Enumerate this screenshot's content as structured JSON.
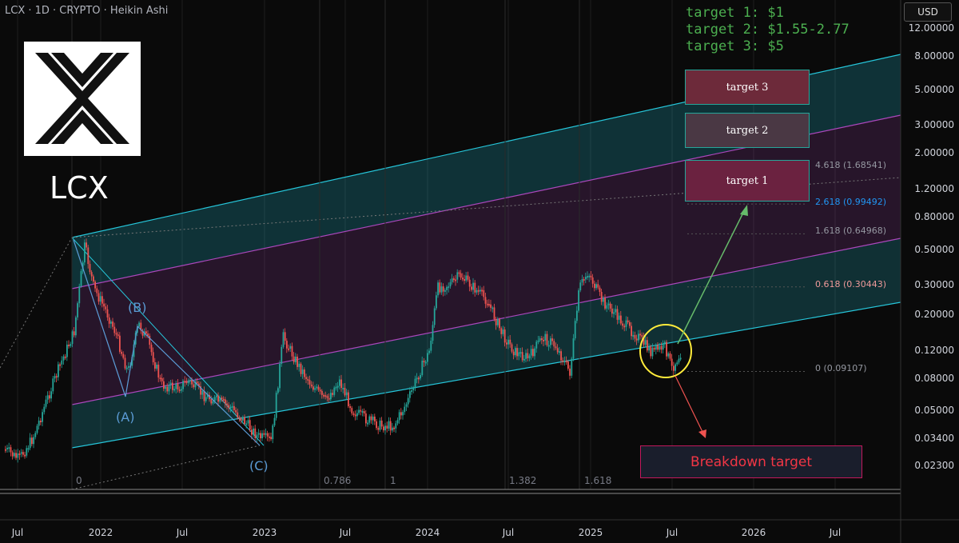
{
  "header": {
    "title": "LCX · 1D · CRYPTO · Heikin Ashi",
    "currency": "USD"
  },
  "ticker_label": "LCX",
  "targets_note": [
    "target 1: $1",
    "target 2: $1.55-2.77",
    "target 3: $5"
  ],
  "target_boxes": [
    {
      "label": "target 3",
      "color": "#6d2a3a"
    },
    {
      "label": "target 2",
      "color": "#4a3844"
    },
    {
      "label": "target 1",
      "color": "#6b2240"
    }
  ],
  "breakdown_label": "Breakdown target",
  "wave_labels": [
    "(A)",
    "(B)",
    "(C)"
  ],
  "fib_levels": [
    {
      "label": "4.618 (1.68541)",
      "value": 1.68541,
      "color": "#9598a1"
    },
    {
      "label": "2.618 (0.99492)",
      "value": 0.99492,
      "color": "#2196f3"
    },
    {
      "label": "1.618 (0.64968)",
      "value": 0.64968,
      "color": "#9598a1"
    },
    {
      "label": "0.618 (0.30443)",
      "value": 0.30443,
      "color": "#ef9a9a"
    },
    {
      "label": "0 (0.09107)",
      "value": 0.09107,
      "color": "#9598a1"
    }
  ],
  "time_fib_labels": [
    "0",
    "0.786",
    "1",
    "1.382",
    "1.618"
  ],
  "colors": {
    "up": "#26a69a",
    "down": "#ef5350",
    "channel": "#26c6da",
    "midband": "#ab47bc",
    "target_text": "#4caf50",
    "circle": "#ffeb3b",
    "arrow_up": "#66bb6a",
    "arrow_down": "#ef5350"
  },
  "chart_data": {
    "type": "line",
    "title": "LCX · 1D · CRYPTO · Heikin Ashi",
    "y_scale": "log",
    "y_ticks": [
      "12.00000",
      "8.00000",
      "5.00000",
      "3.00000",
      "2.00000",
      "1.20000",
      "0.80000",
      "0.50000",
      "0.30000",
      "0.20000",
      "0.12000",
      "0.08000",
      "0.05000",
      "0.03400",
      "0.02300"
    ],
    "x_ticks": [
      "Jul",
      "2022",
      "Jul",
      "2023",
      "Jul",
      "2024",
      "Jul",
      "2025",
      "Jul",
      "2026",
      "Jul"
    ],
    "series": [
      {
        "x": [
          "2021-06-01",
          "2021-07-01",
          "2021-08-01",
          "2021-09-01",
          "2021-10-01",
          "2021-11-01",
          "2021-11-25",
          "2021-12-15",
          "2022-01-10",
          "2022-02-01",
          "2022-03-01",
          "2022-03-25",
          "2022-04-15",
          "2022-05-15",
          "2022-06-15",
          "2022-07-15",
          "2022-08-15",
          "2022-09-15",
          "2022-10-15",
          "2022-11-15",
          "2022-12-15",
          "2023-01-15",
          "2023-02-10",
          "2023-03-15",
          "2023-04-15",
          "2023-05-15",
          "2023-06-15",
          "2023-07-15",
          "2023-08-15",
          "2023-09-15",
          "2023-10-15",
          "2023-11-15",
          "2023-12-10",
          "2024-01-01",
          "2024-01-20",
          "2024-02-20",
          "2024-03-10",
          "2024-04-10",
          "2024-05-10",
          "2024-06-10",
          "2024-07-10",
          "2024-08-10",
          "2024-09-10",
          "2024-10-10",
          "2024-11-10",
          "2024-12-01",
          "2024-12-20",
          "2025-01-20",
          "2025-02-10",
          "2025-03-10",
          "2025-04-10",
          "2025-05-10",
          "2025-06-10",
          "2025-06-25",
          "2025-07-15"
        ],
        "values": [
          0.03,
          0.026,
          0.035,
          0.06,
          0.1,
          0.16,
          0.55,
          0.3,
          0.22,
          0.16,
          0.09,
          0.18,
          0.14,
          0.075,
          0.072,
          0.08,
          0.065,
          0.06,
          0.055,
          0.045,
          0.036,
          0.034,
          0.15,
          0.1,
          0.075,
          0.06,
          0.08,
          0.052,
          0.046,
          0.042,
          0.042,
          0.06,
          0.09,
          0.12,
          0.3,
          0.32,
          0.36,
          0.3,
          0.25,
          0.16,
          0.12,
          0.11,
          0.15,
          0.13,
          0.09,
          0.3,
          0.38,
          0.25,
          0.22,
          0.18,
          0.15,
          0.12,
          0.13,
          0.095,
          0.12
        ]
      }
    ]
  }
}
